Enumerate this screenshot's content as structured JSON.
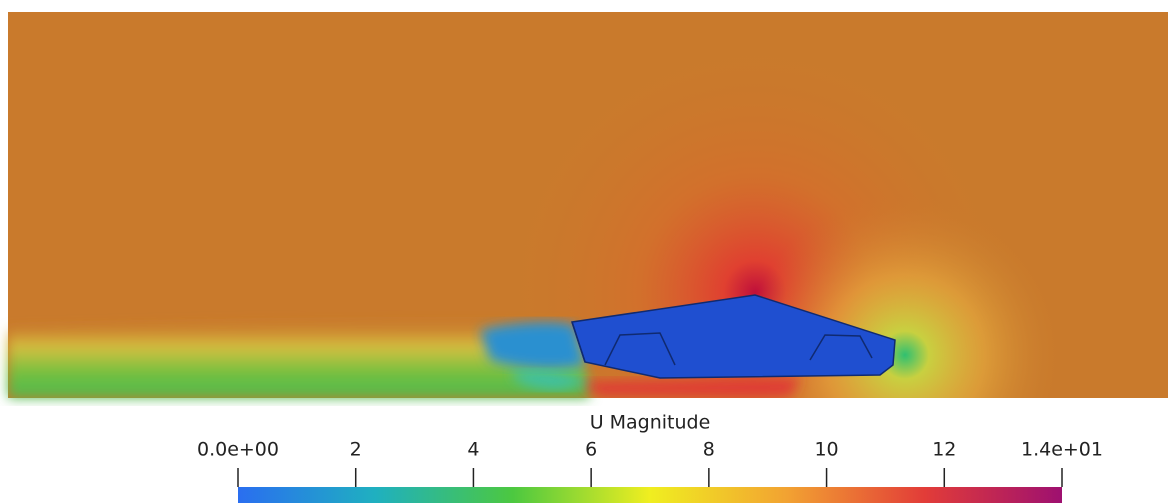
{
  "colorbar": {
    "title": "U Magnitude",
    "range": [
      0,
      14
    ],
    "ticks": [
      {
        "value": 0,
        "label": "0.0e+00"
      },
      2,
      4,
      6,
      8,
      10,
      12,
      {
        "value": 14,
        "label": "1.4e+01"
      }
    ],
    "colormap": [
      "#2a6ef0",
      "#1fb0c0",
      "#4cc840",
      "#f0ee20",
      "#f2a232",
      "#e23c38",
      "#9e1070"
    ]
  }
}
